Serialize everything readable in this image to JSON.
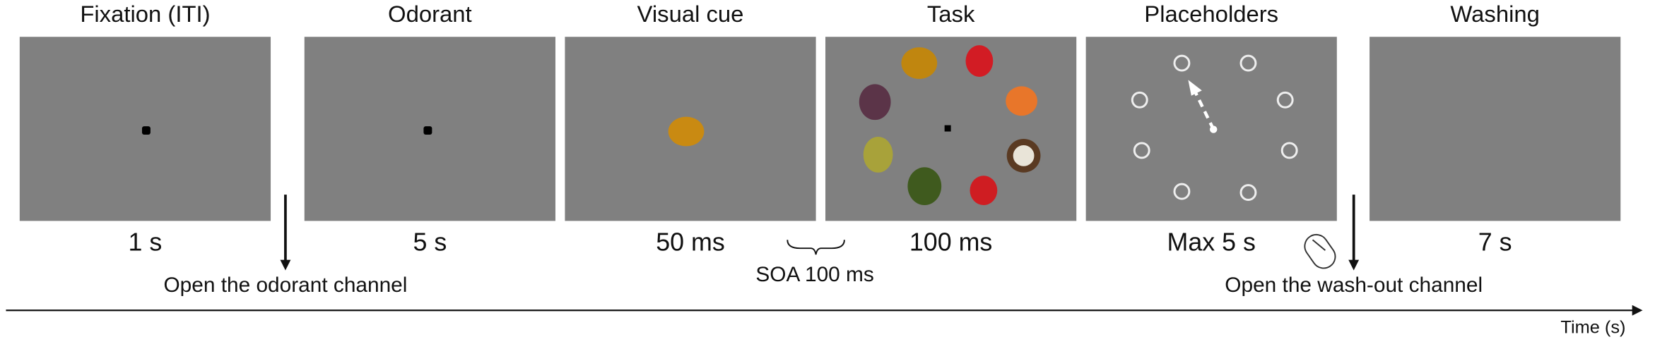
{
  "panels": [
    {
      "title": "Fixation (ITI)",
      "duration": "1 s"
    },
    {
      "title": "Odorant",
      "duration": "5 s"
    },
    {
      "title": "Visual cue",
      "duration": "50 ms"
    },
    {
      "title": "Task",
      "duration": "100 ms"
    },
    {
      "title": "Placeholders",
      "duration": "Max 5 s"
    },
    {
      "title": "Washing",
      "duration": "7 s"
    }
  ],
  "annotations": {
    "odorant_channel": "Open the odorant channel",
    "soa": "SOA 100 ms",
    "washout_channel": "Open the wash-out channel"
  },
  "time_axis": {
    "label": "Time (s)"
  }
}
